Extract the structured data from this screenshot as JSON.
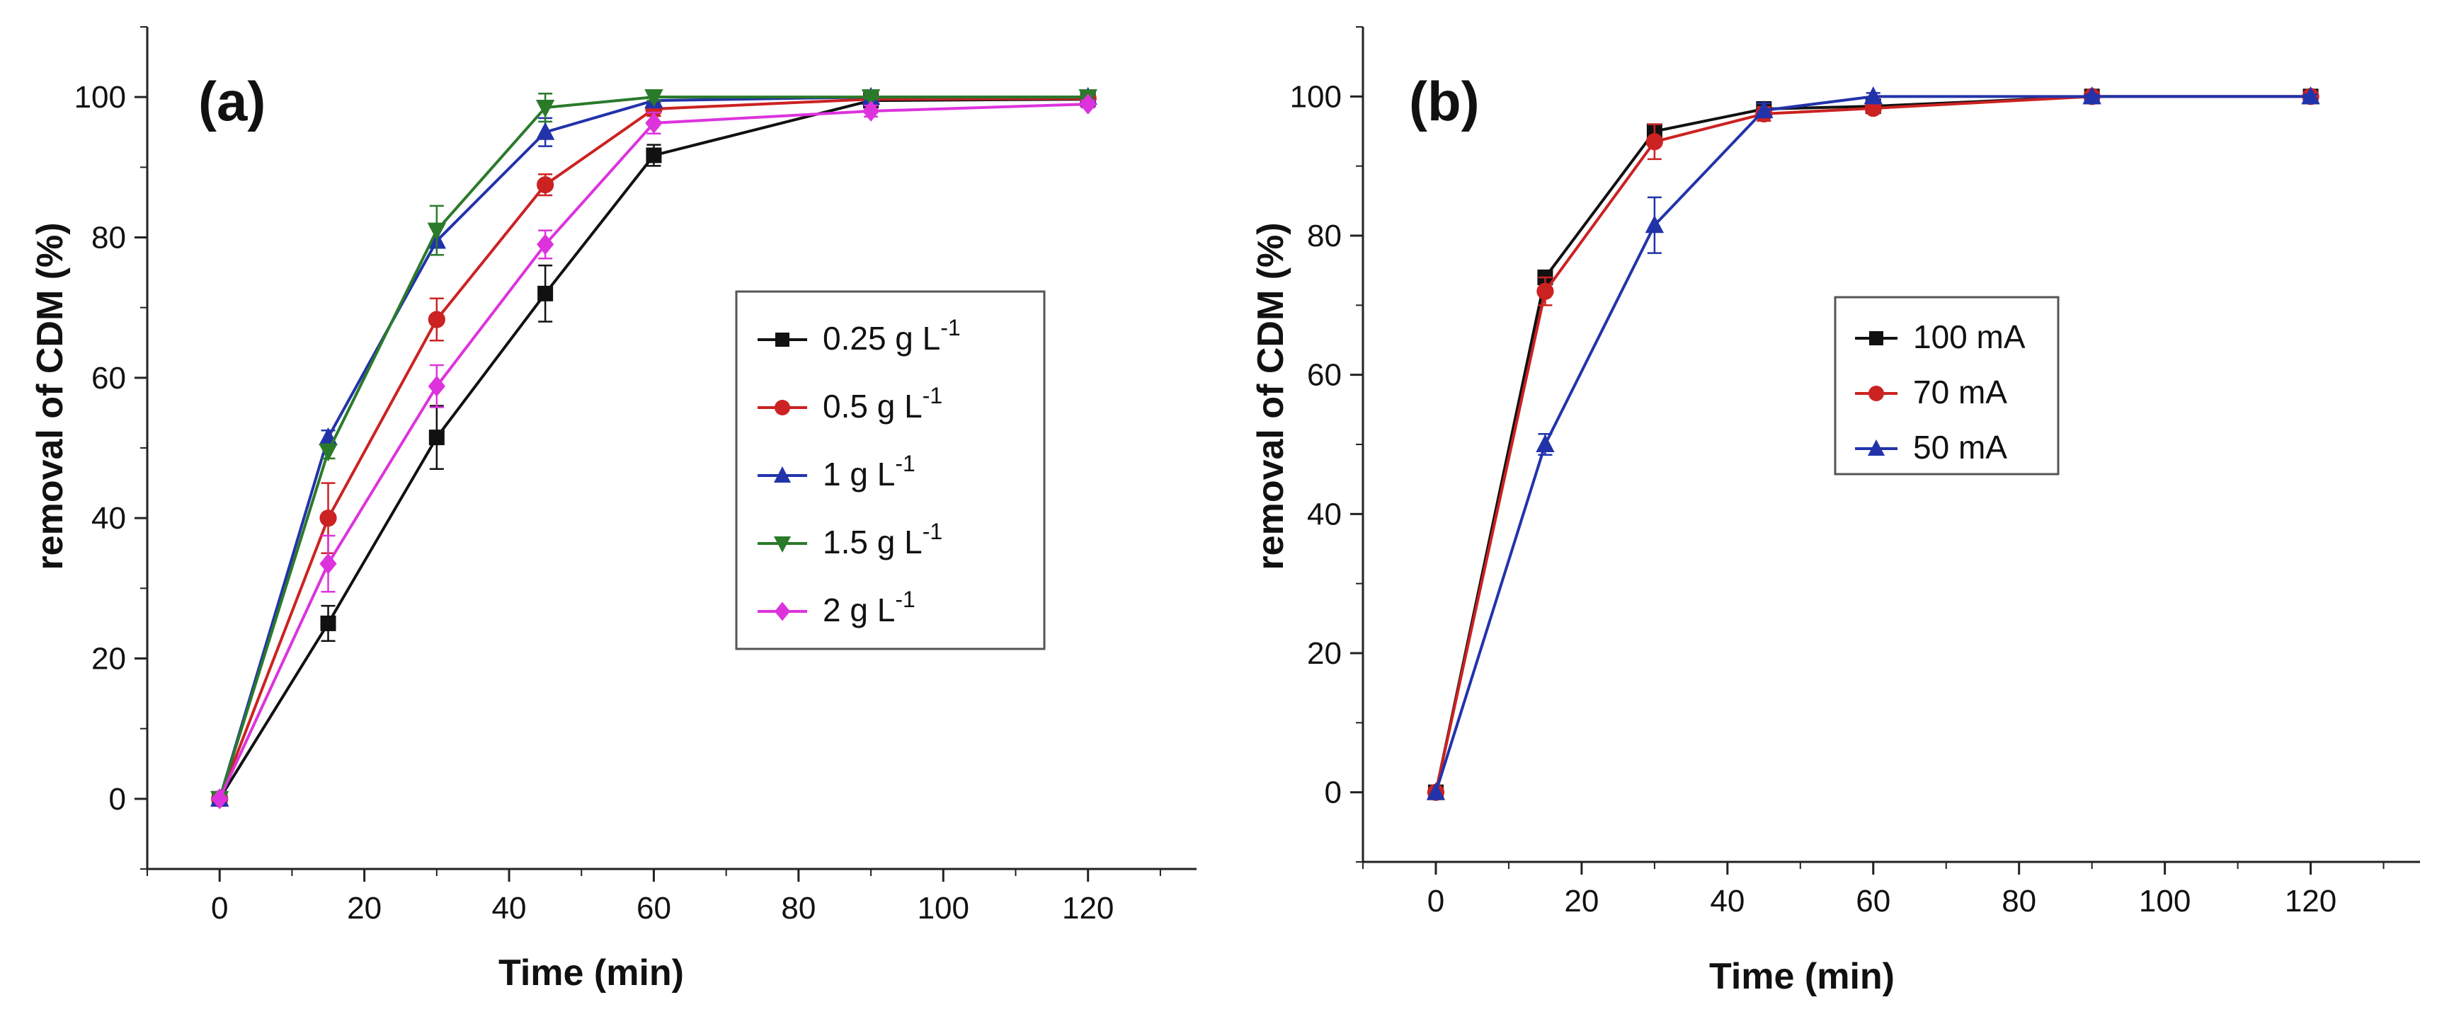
{
  "chart_data": [
    {
      "type": "line",
      "panel_label": "(a)",
      "xlabel": "Time (min)",
      "ylabel": "removal of CDM (%)",
      "xlim": [
        -10,
        135
      ],
      "ylim": [
        -10,
        110
      ],
      "xticks": [
        0,
        20,
        40,
        60,
        80,
        100,
        120
      ],
      "yticks": [
        0,
        20,
        40,
        60,
        80,
        100
      ],
      "legend_position": "center-right",
      "series": [
        {
          "name": "0.25 g L",
          "superscript": "-1",
          "color": "#111111",
          "marker": "square",
          "x": [
            0,
            15,
            30,
            45,
            60,
            90,
            120
          ],
          "y": [
            0,
            25,
            51.5,
            72,
            91.7,
            99.5,
            99.7
          ],
          "err": [
            0,
            2.5,
            4.5,
            4,
            1.5,
            0.5,
            0.3
          ]
        },
        {
          "name": "0.5 g L",
          "superscript": "-1",
          "color": "#cc2222",
          "marker": "circle",
          "x": [
            0,
            15,
            30,
            45,
            60,
            90,
            120
          ],
          "y": [
            0,
            40,
            68.3,
            87.5,
            98.3,
            99.7,
            99.8
          ],
          "err": [
            0,
            5,
            3,
            1.5,
            1,
            0.3,
            0.2
          ]
        },
        {
          "name": "1 g L",
          "superscript": "-1",
          "color": "#2233aa",
          "marker": "triangle-up",
          "x": [
            0,
            15,
            30,
            45,
            60,
            90,
            120
          ],
          "y": [
            0,
            51.5,
            79.5,
            95,
            99.5,
            100,
            100
          ],
          "err": [
            0,
            1,
            2,
            2,
            0.5,
            0.3,
            0.3
          ]
        },
        {
          "name": "1.5 g L",
          "superscript": "-1",
          "color": "#2a7a2a",
          "marker": "triangle-down",
          "x": [
            0,
            15,
            30,
            45,
            60,
            90,
            120
          ],
          "y": [
            0,
            49.5,
            81,
            98.5,
            100,
            100,
            100
          ],
          "err": [
            0,
            1,
            3.5,
            2,
            0.5,
            0.3,
            0.3
          ]
        },
        {
          "name": "2 g L",
          "superscript": "-1",
          "color": "#dd33dd",
          "marker": "diamond",
          "x": [
            0,
            15,
            30,
            45,
            60,
            90,
            120
          ],
          "y": [
            0,
            33.5,
            58.8,
            79,
            96.3,
            98,
            99
          ],
          "err": [
            0,
            4,
            3,
            2,
            1.5,
            0.8,
            0.5
          ]
        }
      ]
    },
    {
      "type": "line",
      "panel_label": "(b)",
      "xlabel": "Time (min)",
      "ylabel": "removal of CDM (%)",
      "xlim": [
        -10,
        135
      ],
      "ylim": [
        -10,
        110
      ],
      "xticks": [
        0,
        20,
        40,
        60,
        80,
        100,
        120
      ],
      "yticks": [
        0,
        20,
        40,
        60,
        80,
        100
      ],
      "legend_position": "center",
      "series": [
        {
          "name": "100 mA",
          "superscript": "",
          "color": "#111111",
          "marker": "square",
          "x": [
            0,
            15,
            30,
            45,
            60,
            90,
            120
          ],
          "y": [
            0,
            74,
            95,
            98.2,
            98.6,
            100,
            100
          ],
          "err": [
            0,
            1,
            1,
            1,
            0.5,
            0.3,
            0.3
          ]
        },
        {
          "name": "70 mA",
          "superscript": "",
          "color": "#cc2222",
          "marker": "circle",
          "x": [
            0,
            15,
            30,
            45,
            60,
            90,
            120
          ],
          "y": [
            0,
            72,
            93.5,
            97.5,
            98.3,
            100,
            100
          ],
          "err": [
            0,
            2,
            2.5,
            1,
            0.7,
            0.3,
            0.3
          ]
        },
        {
          "name": "50 mA",
          "superscript": "",
          "color": "#2233aa",
          "marker": "triangle-up",
          "x": [
            0,
            15,
            30,
            45,
            60,
            90,
            120
          ],
          "y": [
            0,
            50,
            81.5,
            98,
            100,
            100,
            100
          ],
          "err": [
            0,
            1.5,
            4,
            1,
            0.5,
            0.3,
            0.3
          ]
        }
      ]
    }
  ]
}
